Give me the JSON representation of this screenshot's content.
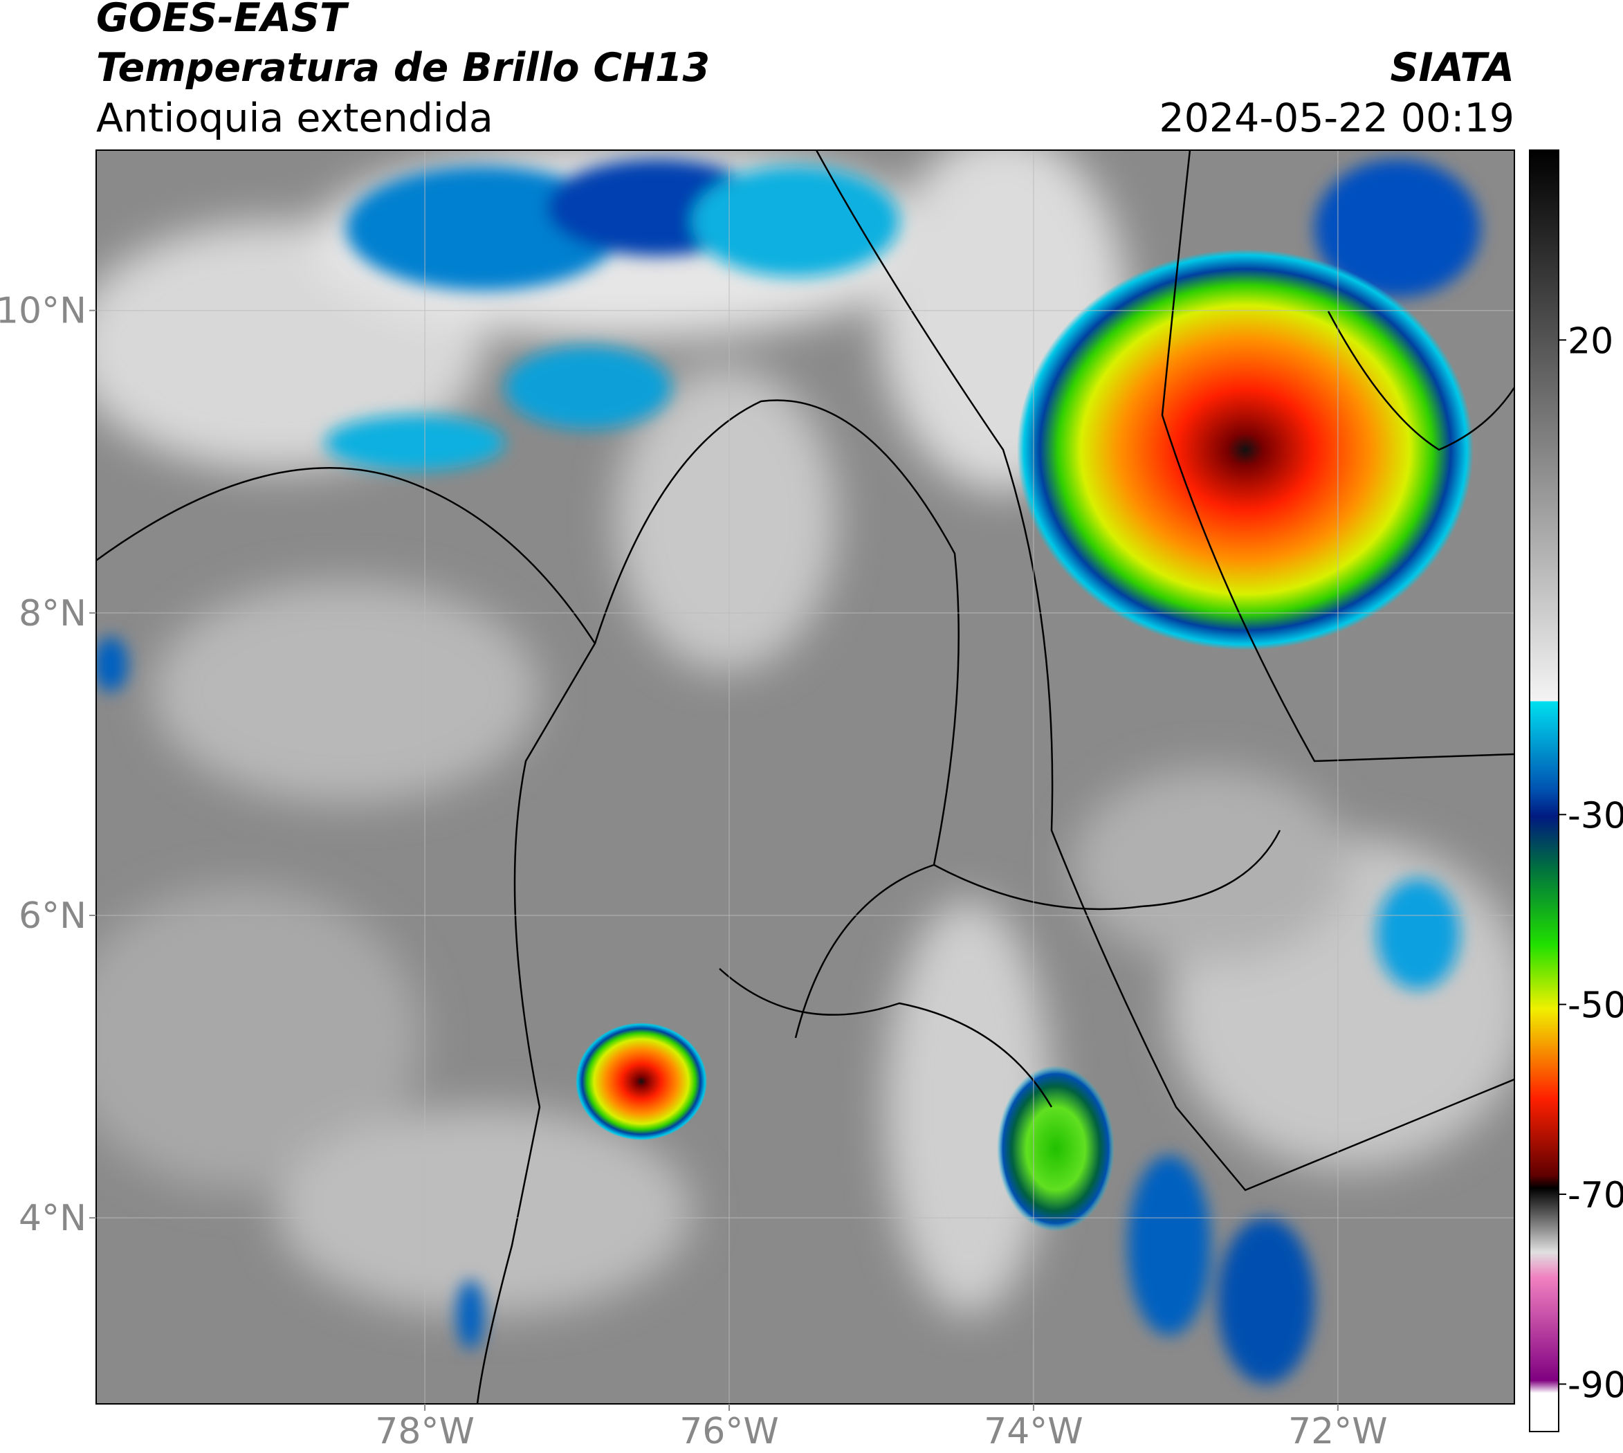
{
  "header": {
    "satellite": "GOES-EAST",
    "product": "Temperatura de Brillo CH13",
    "region": "Antioquia extendida",
    "org": "SIATA",
    "datetime": "2024-05-22 00:19"
  },
  "map": {
    "xlim": [
      -80.16,
      -70.84
    ],
    "ylim": [
      2.77,
      11.06
    ],
    "xticks": [
      {
        "value": -78,
        "label": "78°W"
      },
      {
        "value": -76,
        "label": "76°W"
      },
      {
        "value": -74,
        "label": "74°W"
      },
      {
        "value": -72,
        "label": "72°W"
      }
    ],
    "yticks": [
      {
        "value": 10,
        "label": "10°N"
      },
      {
        "value": 8,
        "label": "8°N"
      },
      {
        "value": 6,
        "label": "6°N"
      },
      {
        "value": 4,
        "label": "4°N"
      }
    ],
    "grid": true
  },
  "colorbar": {
    "lim": [
      -95,
      40
    ],
    "ticks": [
      20,
      -30,
      -50,
      -70,
      -90
    ]
  }
}
